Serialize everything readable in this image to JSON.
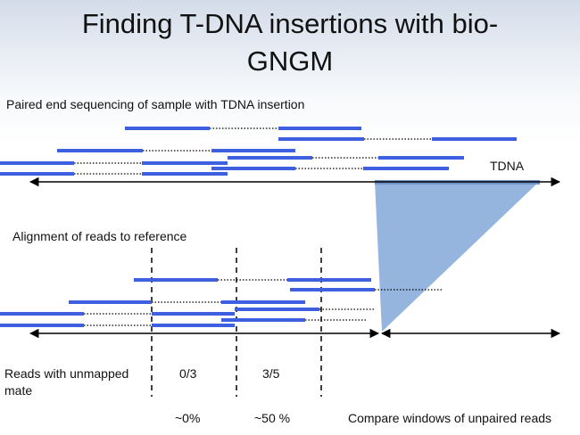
{
  "slide": {
    "title_line1": "Finding T-DNA insertions with bio-",
    "title_line2": "GNGM"
  },
  "labels": {
    "paired_end": "Paired end sequencing of sample with TDNA insertion",
    "tdna": "TDNA",
    "alignment": "Alignment of reads to reference",
    "unmapped_line1": "Reads with unmapped",
    "unmapped_line2": "mate",
    "window1_ratio": "0/3",
    "window2_ratio": "3/5",
    "window1_percent": "~0%",
    "window2_percent": "~50 %",
    "compare": "Compare windows of unpaired reads"
  },
  "colors": {
    "read": "#3d5fe0",
    "insertion_triangle": "#8fb0dc",
    "line": "#000000"
  }
}
